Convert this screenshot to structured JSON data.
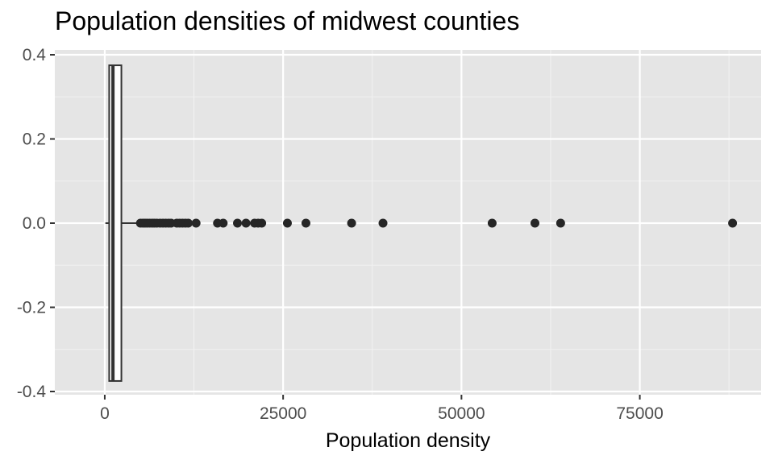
{
  "title": "Population densities of midwest counties",
  "chart_data": {
    "type": "boxplot",
    "title": "Population densities of midwest counties",
    "xlabel": "Population density",
    "ylabel": "",
    "xlim": [
      -7000,
      92000
    ],
    "ylim": [
      -0.4,
      0.4
    ],
    "x_ticks": [
      0,
      25000,
      50000,
      75000
    ],
    "x_tick_labels": [
      "0",
      "25000",
      "50000",
      "75000"
    ],
    "y_ticks": [
      0.4,
      0.2,
      0.0,
      -0.2,
      -0.4
    ],
    "y_tick_labels": [
      "0.4",
      "0.2",
      "0.0",
      "-0.2",
      "-0.4"
    ],
    "grid": true,
    "background": "#e5e5e5",
    "box": {
      "y_center": 0,
      "y_range": [
        -0.375,
        0.375
      ],
      "whisker_low": 85,
      "q1": 620,
      "median": 1150,
      "q3": 2330,
      "whisker_high": 4750
    },
    "outliers": [
      5000,
      5350,
      5650,
      5950,
      6300,
      6650,
      6950,
      7300,
      7750,
      8150,
      8550,
      8950,
      9300,
      10100,
      10500,
      10900,
      11300,
      11700,
      12800,
      15800,
      16600,
      18600,
      19800,
      21000,
      21500,
      22000,
      25600,
      28200,
      34600,
      39000,
      54300,
      60300,
      63900,
      88000
    ]
  }
}
